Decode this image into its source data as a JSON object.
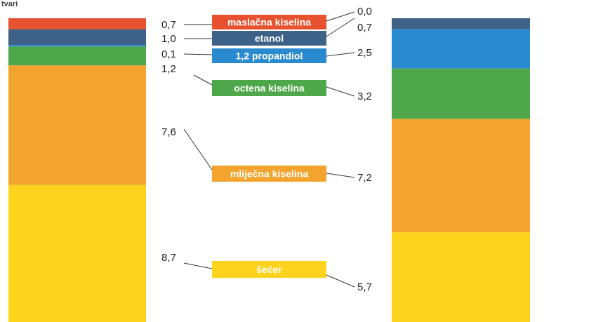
{
  "corner_label": "tvari",
  "colors": {
    "maslacna": "#e8512f",
    "etanol": "#3e6287",
    "propandiol": "#2a8ad0",
    "octena": "#4ea84b",
    "mlijecna": "#f3a42e",
    "secer": "#fdd31d"
  },
  "chart_data": {
    "type": "bar",
    "stacked": true,
    "categories": [
      "maslačna kiselina",
      "etanol",
      "1,2 propandiol",
      "octena kiselina",
      "mliječna kiselina",
      "šećer"
    ],
    "series": [
      {
        "values": [
          "0,7",
          "1,0",
          "0,1",
          "1,2",
          "7,6",
          "8,7"
        ]
      },
      {
        "values": [
          "0,0",
          "0,7",
          "2,5",
          "3,2",
          "7,2",
          "5,7"
        ]
      }
    ],
    "title": "",
    "xlabel": "",
    "ylabel": "",
    "grid": false,
    "legend": "center"
  }
}
